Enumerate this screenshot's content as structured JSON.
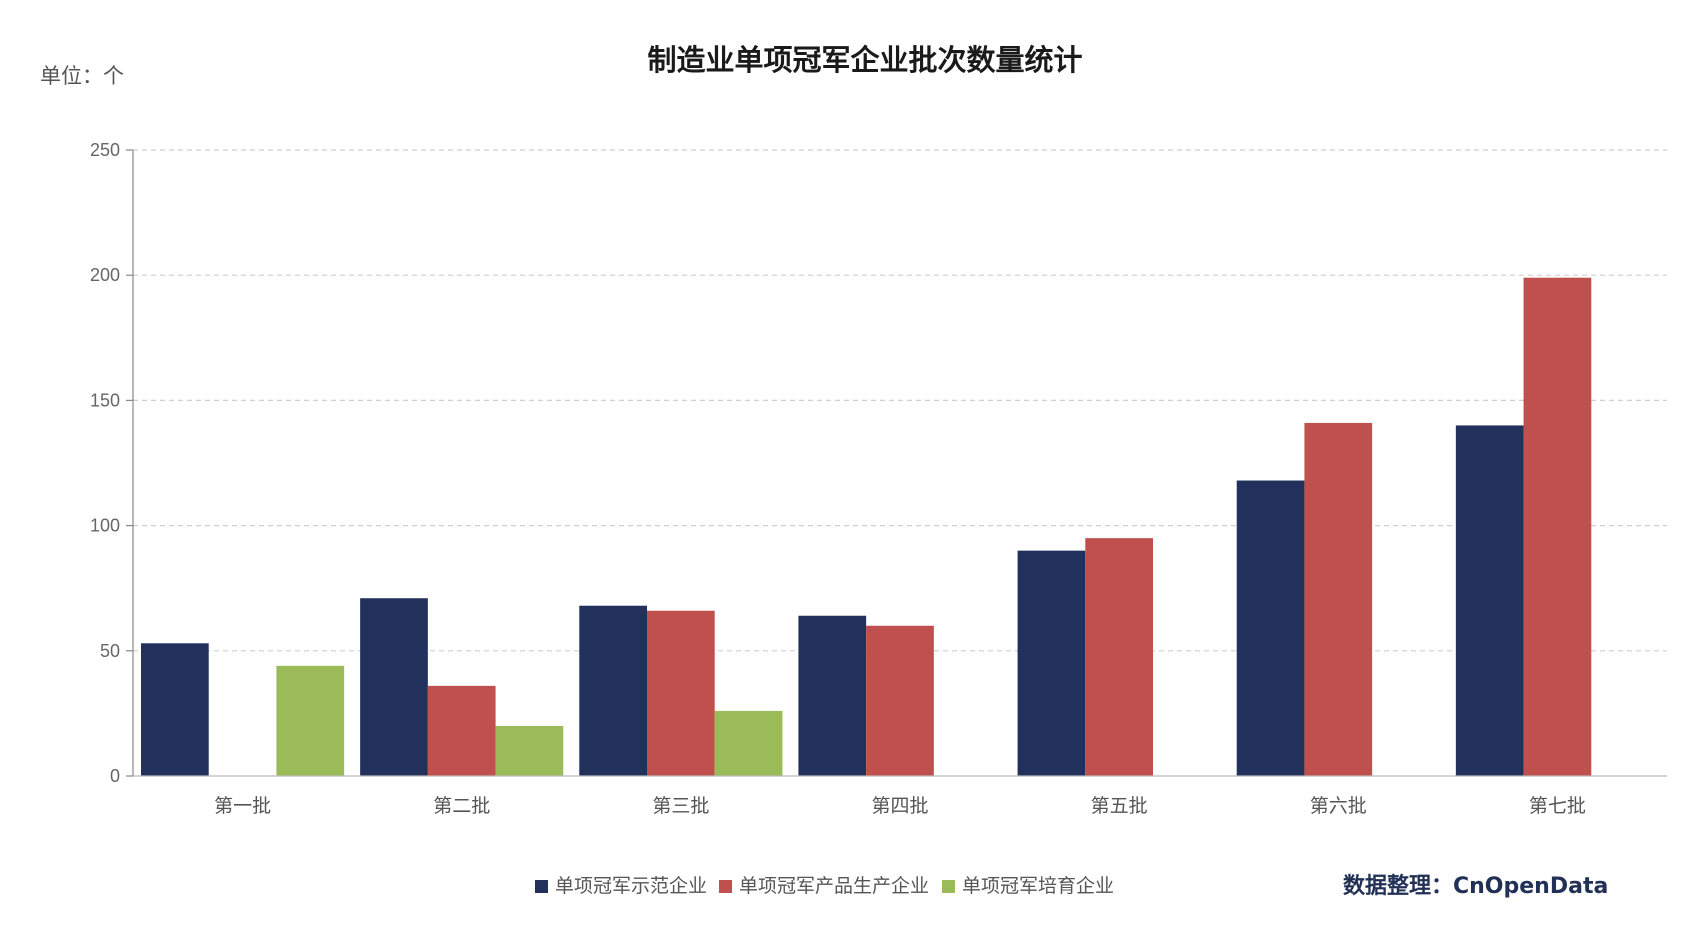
{
  "chart_data": {
    "type": "bar",
    "title": "制造业单项冠军企业批次数量统计",
    "unit_label": "单位：个",
    "source": "数据整理：CnOpenData",
    "categories": [
      "第一批",
      "第二批",
      "第三批",
      "第四批",
      "第五批",
      "第六批",
      "第七批"
    ],
    "series": [
      {
        "name": "单项冠军示范企业",
        "color": "#22305c",
        "values": [
          53,
          71,
          68,
          64,
          90,
          118,
          140
        ]
      },
      {
        "name": "单项冠军产品生产企业",
        "color": "#c0504d",
        "values": [
          null,
          36,
          66,
          60,
          95,
          141,
          199
        ]
      },
      {
        "name": "单项冠军培育企业",
        "color": "#9bbb59",
        "values": [
          44,
          20,
          26,
          null,
          null,
          null,
          null
        ]
      }
    ],
    "ylim": [
      0,
      250
    ],
    "yticks": [
      0,
      50,
      100,
      150,
      200,
      250
    ],
    "grid": true,
    "legend": "bottom-center"
  }
}
